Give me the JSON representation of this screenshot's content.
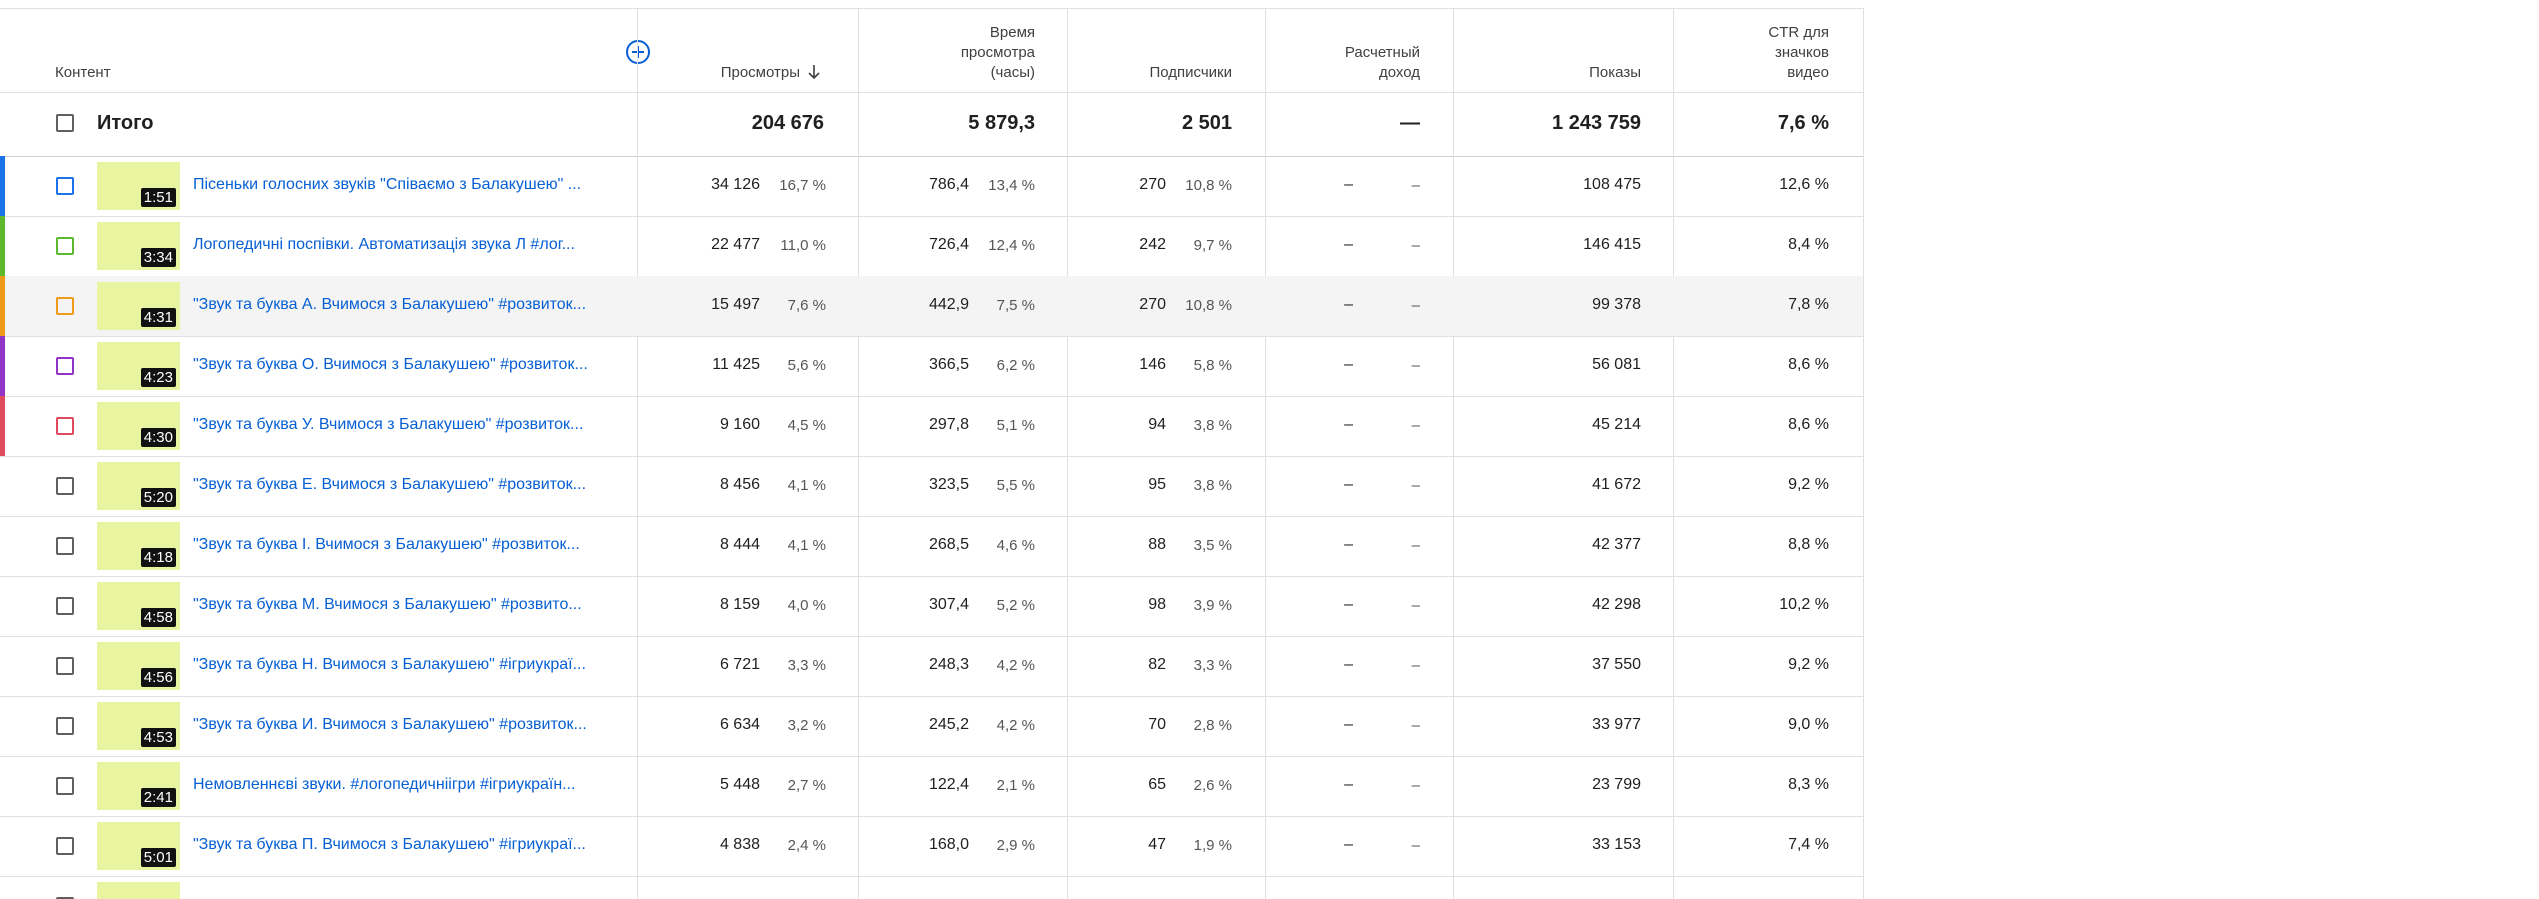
{
  "header": {
    "content": "Контент",
    "views": "Просмотры",
    "watch_time": [
      "Время",
      "просмотра",
      "(часы)"
    ],
    "subscribers": "Подписчики",
    "revenue": [
      "Расчетный",
      "доход"
    ],
    "impressions": "Показы",
    "ctr": [
      "CTR для",
      "значков",
      "видео"
    ]
  },
  "total": {
    "label": "Итого",
    "views": "204 676",
    "watch_time": "5 879,3",
    "subscribers": "2 501",
    "revenue": "—",
    "impressions": "1 243 759",
    "ctr": "7,6 %"
  },
  "rows": [
    {
      "color": "#1a73e8",
      "duration": "1:51",
      "title": "Пісеньки голосних звуків \"Співаємо з Балакушею\" ...",
      "views": "34 126",
      "views_pct": "16,7 %",
      "watch": "786,4",
      "watch_pct": "13,4 %",
      "subs": "270",
      "subs_pct": "10,8 %",
      "revenue": "–",
      "revenue_pct": "–",
      "impressions": "108 475",
      "ctr": "12,6 %"
    },
    {
      "color": "#5bb92b",
      "duration": "3:34",
      "title": "Логопедичні поспівки. Автоматизація звука Л #лог...",
      "views": "22 477",
      "views_pct": "11,0 %",
      "watch": "726,4",
      "watch_pct": "12,4 %",
      "subs": "242",
      "subs_pct": "9,7 %",
      "revenue": "–",
      "revenue_pct": "–",
      "impressions": "146 415",
      "ctr": "8,4 %"
    },
    {
      "color": "#ef9a1a",
      "duration": "4:31",
      "title": "\"Звук та буква А. Вчимося з Балакушею\" #розвиток...",
      "views": "15 497",
      "views_pct": "7,6 %",
      "watch": "442,9",
      "watch_pct": "7,5 %",
      "subs": "270",
      "subs_pct": "10,8 %",
      "revenue": "–",
      "revenue_pct": "–",
      "impressions": "99 378",
      "ctr": "7,8 %"
    },
    {
      "color": "#9334c9",
      "duration": "4:23",
      "title": "\"Звук та буква О. Вчимося з Балакушею\" #розвиток...",
      "views": "11 425",
      "views_pct": "5,6 %",
      "watch": "366,5",
      "watch_pct": "6,2 %",
      "subs": "146",
      "subs_pct": "5,8 %",
      "revenue": "–",
      "revenue_pct": "–",
      "impressions": "56 081",
      "ctr": "8,6 %"
    },
    {
      "color": "#e04a5f",
      "duration": "4:30",
      "title": "\"Звук та буква У. Вчимося з Балакушею\" #розвиток...",
      "views": "9 160",
      "views_pct": "4,5 %",
      "watch": "297,8",
      "watch_pct": "5,1 %",
      "subs": "94",
      "subs_pct": "3,8 %",
      "revenue": "–",
      "revenue_pct": "–",
      "impressions": "45 214",
      "ctr": "8,6 %"
    },
    {
      "duration": "5:20",
      "title": "\"Звук та буква Е. Вчимося з Балакушею\" #розвиток...",
      "views": "8 456",
      "views_pct": "4,1 %",
      "watch": "323,5",
      "watch_pct": "5,5 %",
      "subs": "95",
      "subs_pct": "3,8 %",
      "revenue": "–",
      "revenue_pct": "–",
      "impressions": "41 672",
      "ctr": "9,2 %"
    },
    {
      "duration": "4:18",
      "title": "\"Звук та буква І. Вчимося з Балакушею\" #розвиток...",
      "views": "8 444",
      "views_pct": "4,1 %",
      "watch": "268,5",
      "watch_pct": "4,6 %",
      "subs": "88",
      "subs_pct": "3,5 %",
      "revenue": "–",
      "revenue_pct": "–",
      "impressions": "42 377",
      "ctr": "8,8 %"
    },
    {
      "duration": "4:58",
      "title": "\"Звук та буква М. Вчимося з Балакушею\" #розвито...",
      "views": "8 159",
      "views_pct": "4,0 %",
      "watch": "307,4",
      "watch_pct": "5,2 %",
      "subs": "98",
      "subs_pct": "3,9 %",
      "revenue": "–",
      "revenue_pct": "–",
      "impressions": "42 298",
      "ctr": "10,2 %"
    },
    {
      "duration": "4:56",
      "title": "\"Звук та буква Н. Вчимося з Балакушею\" #ігриукраї...",
      "views": "6 721",
      "views_pct": "3,3 %",
      "watch": "248,3",
      "watch_pct": "4,2 %",
      "subs": "82",
      "subs_pct": "3,3 %",
      "revenue": "–",
      "revenue_pct": "–",
      "impressions": "37 550",
      "ctr": "9,2 %"
    },
    {
      "duration": "4:53",
      "title": "\"Звук та буква И. Вчимося з Балакушею\" #розвиток...",
      "views": "6 634",
      "views_pct": "3,2 %",
      "watch": "245,2",
      "watch_pct": "4,2 %",
      "subs": "70",
      "subs_pct": "2,8 %",
      "revenue": "–",
      "revenue_pct": "–",
      "impressions": "33 977",
      "ctr": "9,0 %"
    },
    {
      "duration": "2:41",
      "title": "Немовленнєві звуки. #логопедичніігри #ігриукраїн...",
      "views": "5 448",
      "views_pct": "2,7 %",
      "watch": "122,4",
      "watch_pct": "2,1 %",
      "subs": "65",
      "subs_pct": "2,6 %",
      "revenue": "–",
      "revenue_pct": "–",
      "impressions": "23 799",
      "ctr": "8,3 %"
    },
    {
      "duration": "5:01",
      "title": "\"Звук та буква П. Вчимося з Балакушею\" #ігриукраї...",
      "views": "4 838",
      "views_pct": "2,4 %",
      "watch": "168,0",
      "watch_pct": "2,9 %",
      "subs": "47",
      "subs_pct": "1,9 %",
      "revenue": "–",
      "revenue_pct": "–",
      "impressions": "33 153",
      "ctr": "7,4 %"
    }
  ]
}
